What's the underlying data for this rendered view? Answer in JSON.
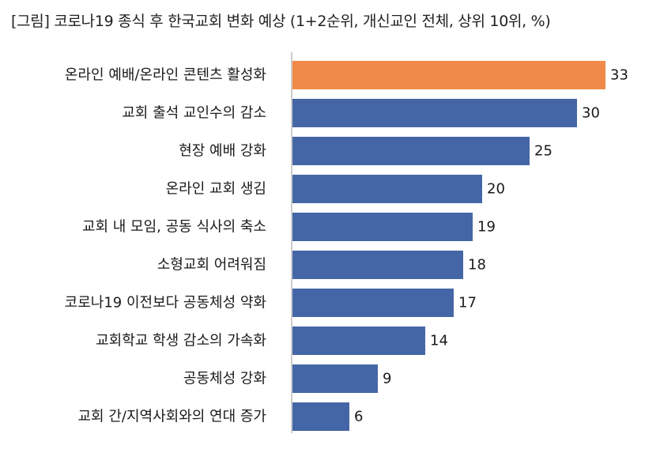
{
  "chart_data": {
    "type": "bar",
    "orientation": "horizontal",
    "title": "[그림] 코로나19 종식 후 한국교회 변화 예상 (1+2순위, 개신교인 전체, 상위 10위, %)",
    "categories": [
      "온라인 예배/온라인 콘텐츠 활성화",
      "교회 출석 교인수의 감소",
      "현장 예배 강화",
      "온라인 교회 생김",
      "교회 내 모임, 공동 식사의 축소",
      "소형교회 어려워짐",
      "코로나19 이전보다 공동체성 약화",
      "교회학교 학생 감소의 가속화",
      "공동체성 강화",
      "교회 간/지역사회와의 연대 증가"
    ],
    "values": [
      33,
      30,
      25,
      20,
      19,
      18,
      17,
      14,
      9,
      6
    ],
    "value_labels": [
      "33",
      "30",
      "25",
      "20",
      "19",
      "18",
      "17",
      "14",
      "9",
      "6"
    ],
    "highlight_index": 0,
    "colors": {
      "bar": "#4566a6",
      "highlight": "#f08a48",
      "axis": "#9a9a9a"
    },
    "grid": false,
    "legend": "none"
  }
}
